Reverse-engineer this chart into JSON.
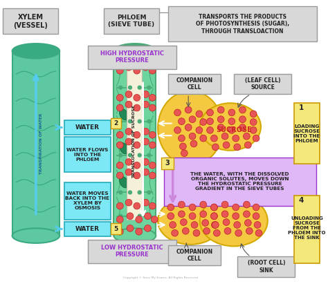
{
  "background_color": "#ffffff",
  "xylem_label": "XYLEM\n(VESSEL)",
  "phloem_label": "PHLOEM\n(SIEVE TUBE)",
  "phloem_desc": "TRANSPORTS THE PRODUCTS\nOF PHOTOSYNTHESIS (SUGAR),\nTHROUGH TRANSLOACTION",
  "high_pressure": "HIGH HYDROSTATIC\nPRESSURE",
  "low_pressure": "LOW HYDROSTATIC\nPRESSURE",
  "transpiration": "TRANSPIRATION OF WATER",
  "translocation": "TRANSLOCATION OF SUCROSE",
  "water_label": "WATER",
  "water2_label": "WATER",
  "companion_cell_top": "COMPANION\nCELL",
  "companion_cell_bot": "COMPANION\nCELL",
  "leaf_cell": "(LEAF CELL)\nSOURCE",
  "root_cell": "(ROOT CELL)\nSINK",
  "sucrose_label": "SUCROSE",
  "step1_label": "1",
  "step2_label": "2",
  "step3_label": "3",
  "step4_label": "4",
  "step5_label": "5",
  "step1_text": "LOADING\nSUCROSE\nINTO THE\nPHLOEM",
  "step2_text": "WATER FLOWS\nINTO THE\nPHLOEM",
  "step3_text": "THE WATER, WITH THE DISSOLVED\nORGANIC SOLUTES, MOVES DOWN\nTHE HYDROSTATIC PRESSURE\nGRADIENT IN THE SIEVE TUBES",
  "step4_text": "UNLOADING\nSUCROSE\nFROM THE\nPHLOEM INTO\nTHE SINK",
  "step5_text": "WATER MOVES\nBACK INTO THE\nXYLEM BY\nOSMOSIS",
  "xylem_color": "#5ec8a0",
  "xylem_dark": "#3aaa80",
  "xylem_mid": "#4db88a",
  "phloem_color": "#6dd4a0",
  "phloem_dark": "#4aaa78",
  "cell_color": "#f5c842",
  "cell_edge": "#d4aa00",
  "dot_color": "#e85555",
  "cyan_box": "#7de8f5",
  "cyan_edge": "#22aabb",
  "purple_box": "#e0b8f8",
  "purple_edge": "#9932cc",
  "gray_box": "#d8d8d8",
  "gray_edge": "#999999",
  "yellow_box": "#f5e87a",
  "yellow_edge": "#cc9900",
  "white_bg": "#ffffff",
  "arrow_cyan": "#55ccee",
  "arrow_purple": "#cc88dd",
  "transl_box": "#f5f0d8",
  "text_dark": "#222222",
  "copyright": "Copyright © Save My Exams. All Rights Reserved"
}
